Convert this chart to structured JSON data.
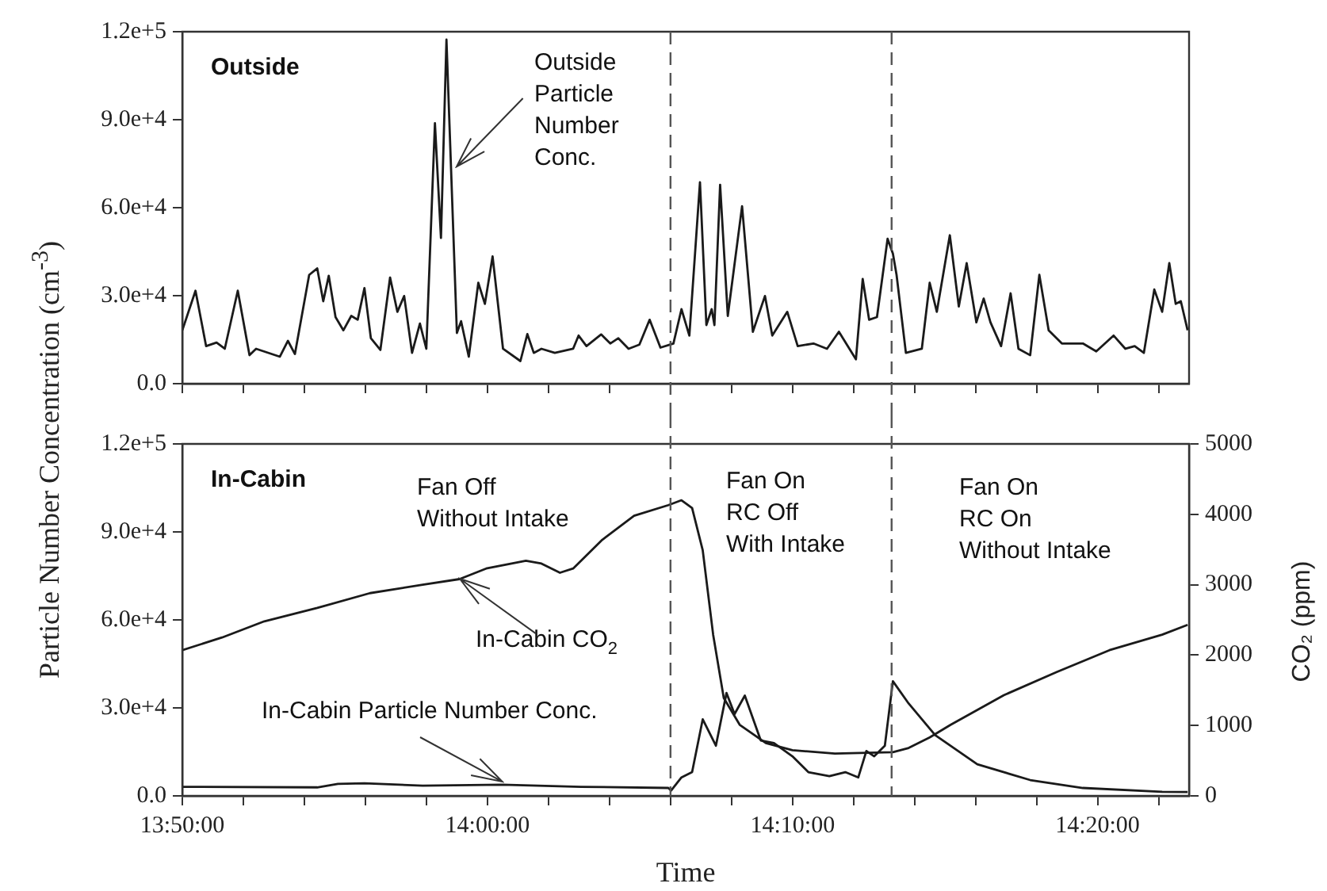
{
  "chart_data": [
    {
      "type": "line",
      "title": "Outside",
      "marker": "none",
      "grid": false,
      "legend": false,
      "tick_labels": "y",
      "xlim": [
        13.8333,
        14.3833
      ],
      "xticks": [
        {
          "value": 13.8333,
          "label": null
        },
        {
          "value": 13.8667,
          "label": null
        },
        {
          "value": 13.9,
          "label": null
        },
        {
          "value": 13.9333,
          "label": null
        },
        {
          "value": 13.9667,
          "label": null
        },
        {
          "value": 14.0,
          "label": null
        },
        {
          "value": 14.0333,
          "label": null
        },
        {
          "value": 14.0667,
          "label": null
        },
        {
          "value": 14.1,
          "label": null
        },
        {
          "value": 14.1333,
          "label": null
        },
        {
          "value": 14.1667,
          "label": null
        },
        {
          "value": 14.2,
          "label": null
        },
        {
          "value": 14.2333,
          "label": null
        },
        {
          "value": 14.2667,
          "label": null
        },
        {
          "value": 14.3,
          "label": null
        },
        {
          "value": 14.3333,
          "label": null
        },
        {
          "value": 14.3667,
          "label": null
        }
      ],
      "ylim": [
        0,
        120000
      ],
      "yticks": [
        {
          "value": 0,
          "label": "0.0"
        },
        {
          "value": 30000,
          "label": "3.0e+4"
        },
        {
          "value": 60000,
          "label": "6.0e+4"
        },
        {
          "value": 90000,
          "label": "9.0e+4"
        },
        {
          "value": 120000,
          "label": "1.2e+5"
        }
      ],
      "ref_lines": [
        {
          "axis": "x",
          "value": 14.1,
          "label": null,
          "color": "#555555",
          "line_style": "dashed"
        },
        {
          "axis": "x",
          "value": 14.2208,
          "label": null,
          "color": "#555555",
          "line_style": "dashed"
        }
      ],
      "annotations": [
        {
          "text": "Outside Particle Number Conc.",
          "x": 13.9833,
          "y": 74000
        }
      ],
      "series": [
        {
          "color": "#1a1a1a",
          "x": [
            13.8333,
            13.8405,
            13.8463,
            13.852,
            13.8565,
            13.8636,
            13.87,
            13.8736,
            13.8866,
            13.891,
            13.8948,
            13.9026,
            13.907,
            13.9103,
            13.9133,
            13.917,
            13.9213,
            13.9256,
            13.9291,
            13.9328,
            13.9363,
            13.9415,
            13.9468,
            13.9508,
            13.9545,
            13.9588,
            13.9631,
            13.9666,
            13.9713,
            13.9746,
            13.9776,
            13.9833,
            13.9856,
            13.9898,
            13.995,
            13.9986,
            14.0028,
            14.0085,
            14.018,
            14.0218,
            14.0253,
            14.0295,
            14.0368,
            14.0468,
            14.0498,
            14.0541,
            14.0621,
            14.0671,
            14.0715,
            14.0771,
            14.083,
            14.0886,
            14.0945,
            14.1016,
            14.106,
            14.1103,
            14.1161,
            14.1196,
            14.1225,
            14.124,
            14.1271,
            14.1313,
            14.1391,
            14.145,
            14.1516,
            14.1556,
            14.1638,
            14.1695,
            14.1781,
            14.1855,
            14.192,
            14.2013,
            14.205,
            14.2085,
            14.2128,
            14.2186,
            14.2215,
            14.2235,
            14.2286,
            14.2373,
            14.2416,
            14.2455,
            14.2526,
            14.2575,
            14.2618,
            14.2671,
            14.2711,
            14.2748,
            14.2806,
            14.2858,
            14.2901,
            14.2965,
            14.3015,
            14.3066,
            14.3138,
            14.3253,
            14.3326,
            14.3421,
            14.3485,
            14.3536,
            14.3586,
            14.3643,
            14.3686,
            14.3725,
            14.376,
            14.3788,
            14.3825
          ],
          "values": [
            18200,
            31700,
            12800,
            14000,
            11900,
            31700,
            9700,
            11900,
            9200,
            14600,
            10100,
            37100,
            39300,
            28100,
            36800,
            22700,
            18200,
            23100,
            21800,
            32600,
            15500,
            11500,
            36200,
            24500,
            29900,
            10500,
            20500,
            11900,
            88800,
            49700,
            117300,
            17300,
            21300,
            9200,
            34400,
            27200,
            43400,
            11900,
            7700,
            16900,
            10500,
            11900,
            10500,
            11900,
            16400,
            12800,
            16800,
            13700,
            15500,
            11900,
            13300,
            21800,
            12300,
            13700,
            25400,
            16400,
            68700,
            20000,
            25400,
            20000,
            67800,
            23100,
            60500,
            17700,
            29900,
            16400,
            24500,
            12800,
            13700,
            11900,
            17700,
            8300,
            35700,
            21800,
            22700,
            49400,
            44300,
            37100,
            10500,
            11900,
            34400,
            24500,
            50600,
            26300,
            41100,
            20900,
            29000,
            20900,
            12800,
            30800,
            11900,
            9700,
            37100,
            18200,
            13700,
            13700,
            11000,
            16400,
            11900,
            12800,
            10500,
            32100,
            24500,
            41100,
            27200,
            28100,
            18200
          ]
        }
      ]
    },
    {
      "type": "line",
      "title": "In-Cabin",
      "marker": "none",
      "grid": false,
      "legend": false,
      "xlabel": "Time",
      "ylabel": "Particle Number Concentration (cm$^{-3}$)",
      "y2label": "CO₂ (ppm)",
      "xlim": [
        13.8333,
        14.3833
      ],
      "xticks": [
        {
          "value": 13.8333,
          "label": "13:50:00"
        },
        {
          "value": 13.8667,
          "label": null
        },
        {
          "value": 13.9,
          "label": null
        },
        {
          "value": 13.9333,
          "label": null
        },
        {
          "value": 13.9667,
          "label": null
        },
        {
          "value": 14.0,
          "label": "14:00:00"
        },
        {
          "value": 14.0333,
          "label": null
        },
        {
          "value": 14.0667,
          "label": null
        },
        {
          "value": 14.1,
          "label": null
        },
        {
          "value": 14.1333,
          "label": null
        },
        {
          "value": 14.1667,
          "label": "14:10:00"
        },
        {
          "value": 14.2,
          "label": null
        },
        {
          "value": 14.2333,
          "label": null
        },
        {
          "value": 14.2667,
          "label": null
        },
        {
          "value": 14.3,
          "label": null
        },
        {
          "value": 14.3333,
          "label": "14:20:00"
        },
        {
          "value": 14.3667,
          "label": null
        }
      ],
      "ylim": [
        0,
        120000
      ],
      "yticks": [
        {
          "value": 0,
          "label": "0.0"
        },
        {
          "value": 30000,
          "label": "3.0e+4"
        },
        {
          "value": 60000,
          "label": "6.0e+4"
        },
        {
          "value": 90000,
          "label": "9.0e+4"
        },
        {
          "value": 120000,
          "label": "1.2e+5"
        }
      ],
      "y2lim": [
        0,
        5000
      ],
      "y2ticks": [
        0,
        1000,
        2000,
        3000,
        4000,
        5000
      ],
      "ref_lines": [
        {
          "axis": "x",
          "value": 14.1,
          "label": null,
          "color": "#555555",
          "line_style": "dashed"
        },
        {
          "axis": "x",
          "value": 14.2208,
          "label": null,
          "color": "#555555",
          "line_style": "dashed"
        }
      ],
      "annotations": [
        "Fan Off Without Intake",
        "Fan On RC Off With Intake",
        "Fan On RC On Without Intake",
        {
          "text": "In-Cabin CO$_{2}$",
          "x": 13.9848,
          "y": 73900
        },
        {
          "text": "In-Cabin Particle Number Conc.",
          "x": 14.008,
          "y": 4900
        }
      ],
      "series": [
        {
          "color": "#1a1a1a",
          "axis": "y2",
          "x": [
            13.8333,
            13.855,
            13.8781,
            13.907,
            13.9358,
            13.9646,
            13.9848,
            13.9993,
            14.021,
            14.0295,
            14.0396,
            14.0468,
            14.0628,
            14.0801,
            14.0988,
            14.106,
            14.1118,
            14.1176,
            14.1233,
            14.1291,
            14.1378,
            14.1521,
            14.1666,
            14.1898,
            14.2215,
            14.2301,
            14.2416,
            14.2531,
            14.2821,
            14.311,
            14.3398,
            14.3686,
            14.3825
          ],
          "values": [
            2070,
            2250,
            2480,
            2670,
            2880,
            3000,
            3080,
            3230,
            3340,
            3300,
            3170,
            3230,
            3640,
            3980,
            4130,
            4200,
            4090,
            3490,
            2290,
            1390,
            1010,
            750,
            650,
            600,
            620,
            680,
            830,
            1010,
            1430,
            1760,
            2070,
            2290,
            2430
          ]
        },
        {
          "color": "#1a1a1a",
          "x": [
            13.8333,
            13.907,
            13.9183,
            13.9328,
            13.9646,
            14.008,
            14.0511,
            14.0988,
            14.1003,
            14.106,
            14.1118,
            14.1176,
            14.1248,
            14.1306,
            14.135,
            14.1406,
            14.1493,
            14.1565,
            14.1666,
            14.1753,
            14.1868,
            14.1955,
            14.2026,
            14.207,
            14.2113,
            14.2171,
            14.2215,
            14.2301,
            14.2446,
            14.2676,
            14.2965,
            14.3253,
            14.3686,
            14.3825
          ],
          "values": [
            3100,
            2900,
            4100,
            4300,
            3500,
            3800,
            3100,
            2700,
            1800,
            6300,
            8100,
            26100,
            17100,
            35100,
            27900,
            34200,
            18900,
            18000,
            13500,
            8100,
            6700,
            8100,
            6300,
            15300,
            13500,
            17100,
            39100,
            31500,
            20700,
            10800,
            5400,
            2700,
            1400,
            1300
          ]
        }
      ]
    }
  ]
}
